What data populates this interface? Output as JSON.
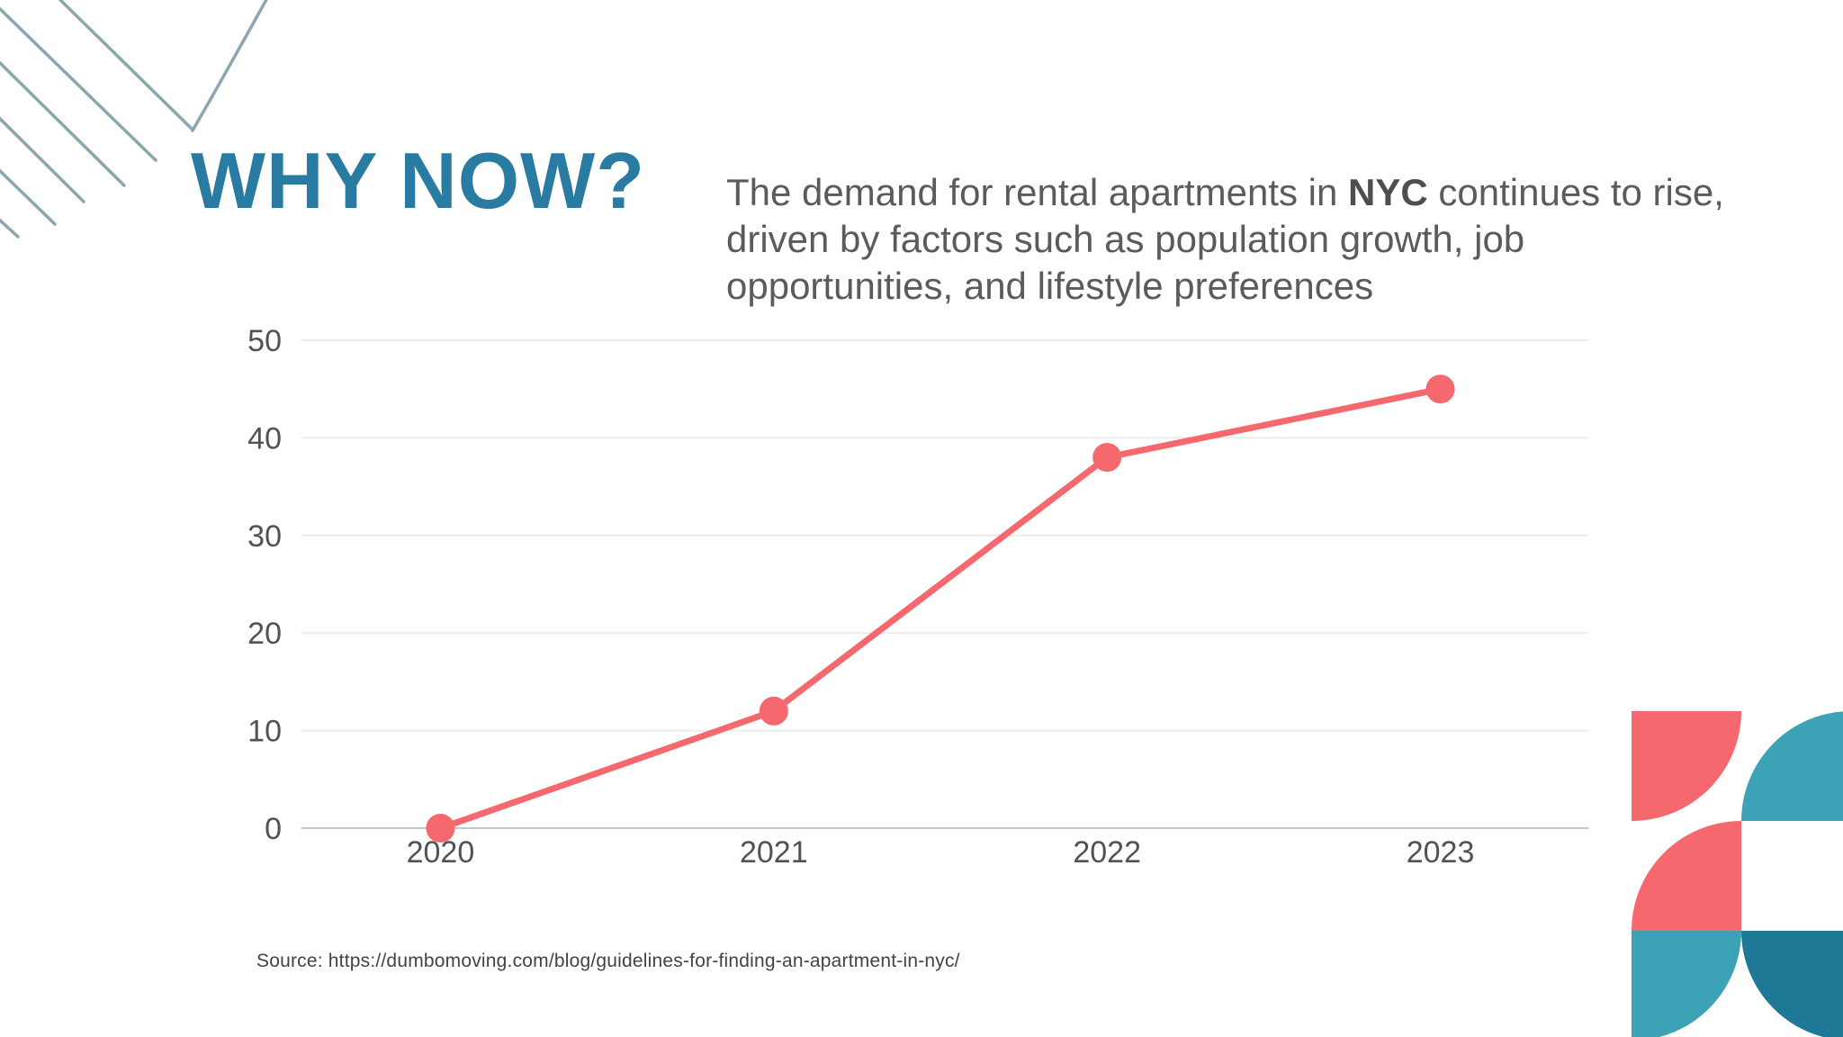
{
  "header": {
    "title": "WHY NOW?"
  },
  "intro": {
    "text_before_bold": "The demand for rental apartments in ",
    "bold_text": "NYC",
    "text_after_bold": " continues to rise, driven by factors such as population growth, job opportunities, and lifestyle preferences"
  },
  "chart_data": {
    "type": "line",
    "categories": [
      "2020",
      "2021",
      "2022",
      "2023"
    ],
    "values": [
      0,
      12,
      38,
      45
    ],
    "yticks": [
      0,
      10,
      20,
      30,
      40,
      50
    ],
    "ylim": [
      0,
      50
    ],
    "grid": true,
    "legend": "none",
    "title": "",
    "xlabel": "",
    "ylabel": "",
    "line_color": "#F5696E",
    "marker": "circle"
  },
  "footer": {
    "source": "Source: https://dumbomoving.com/blog/guidelines-for-finding-an-apartment-in-nyc/"
  },
  "colors": {
    "title_teal": "#2A7BA1",
    "body_gray": "#595B5D",
    "tick_gray": "#505355",
    "gridline": "#ECECEC",
    "axis_line": "#C7C9CA",
    "accent_coral": "#F5696E",
    "deco_pink": "#F5696E",
    "deco_teal": "#3EA2B6",
    "deco_dark_teal": "#1F7896",
    "deco_line_blue_gray": "#8CA5B1"
  }
}
